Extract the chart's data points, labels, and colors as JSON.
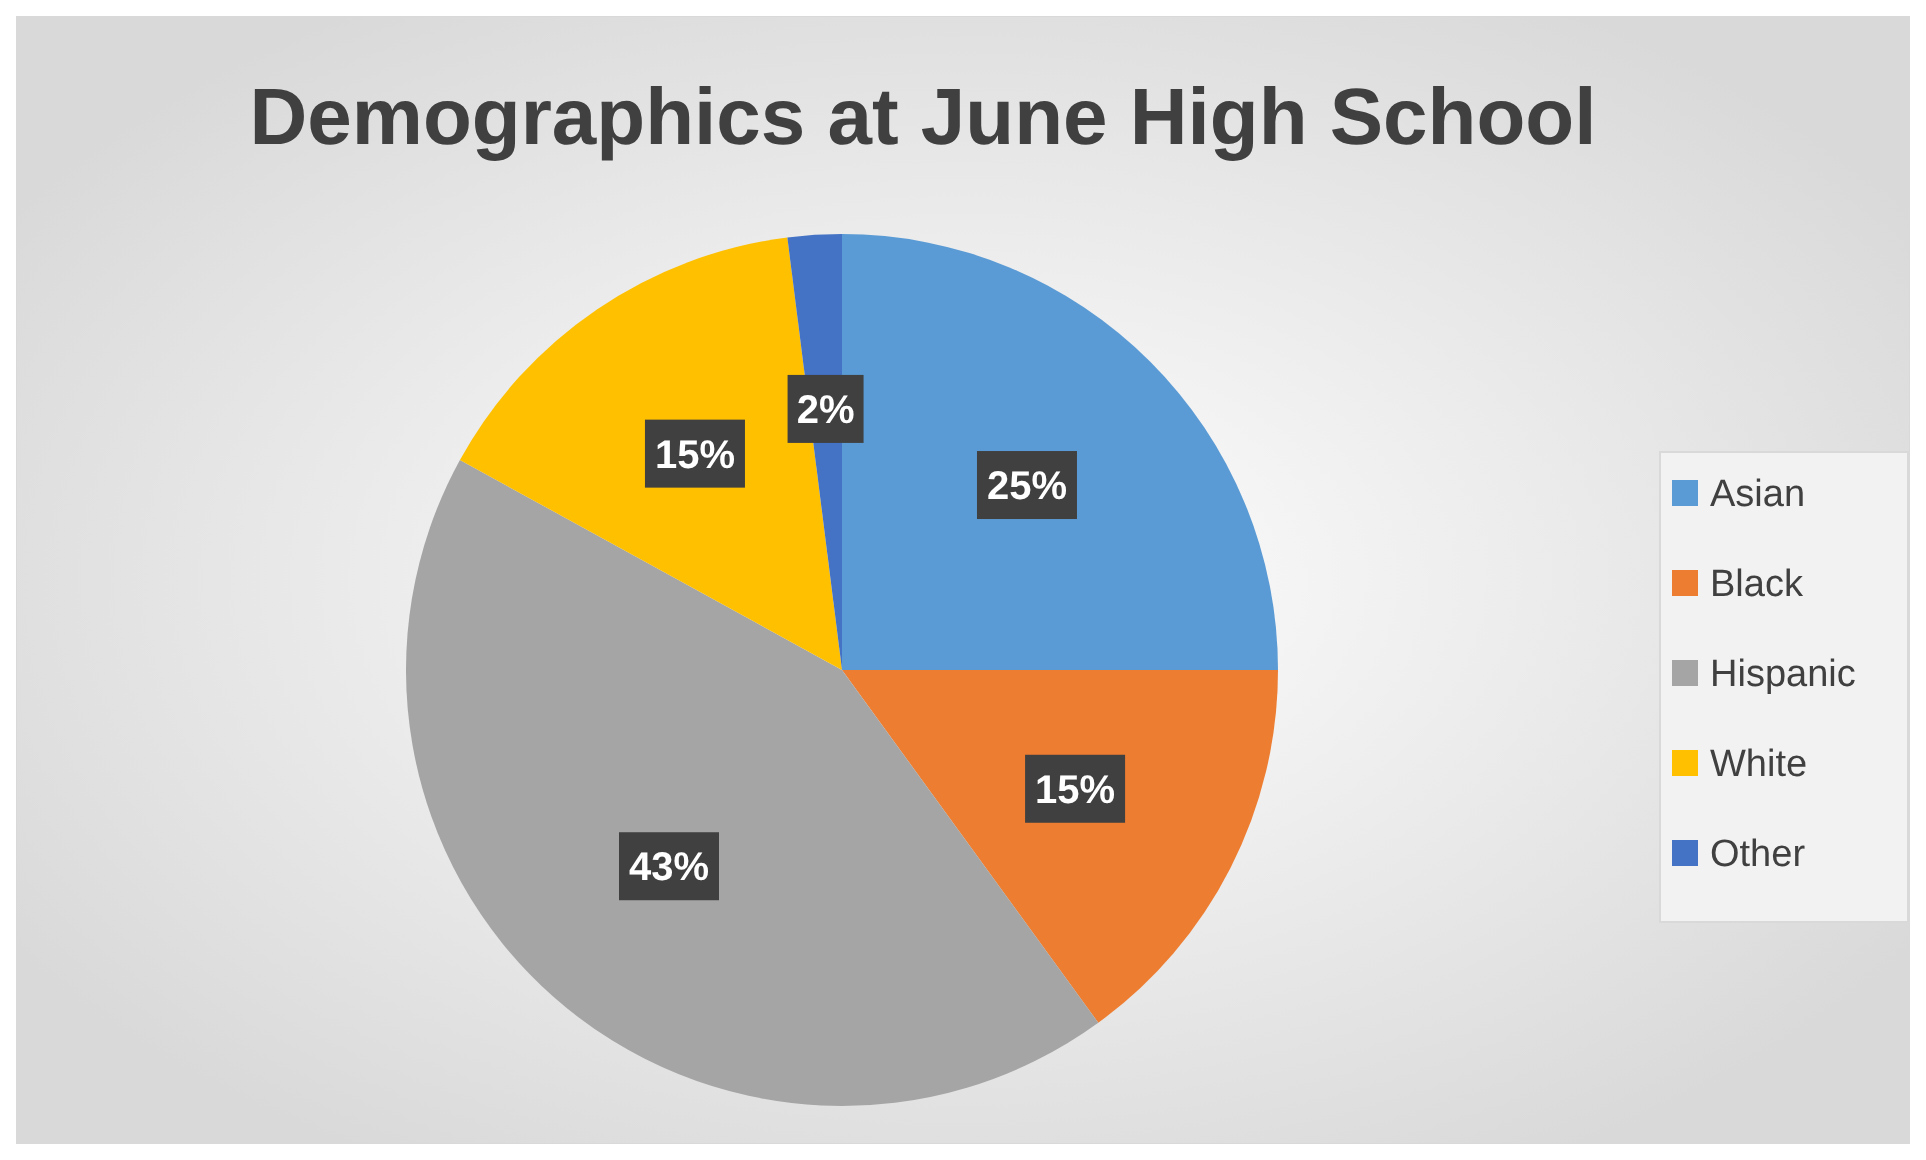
{
  "chart_data": {
    "type": "pie",
    "title": "Demographics at June High School",
    "categories": [
      "Asian",
      "Black",
      "Hispanic",
      "White",
      "Other"
    ],
    "values": [
      25,
      15,
      43,
      15,
      2
    ],
    "colors": [
      "#5b9bd5",
      "#ed7d31",
      "#a5a5a5",
      "#ffc000",
      "#4472c4"
    ],
    "value_labels": [
      "25%",
      "15%",
      "43%",
      "15%",
      "2%"
    ],
    "legend": "right"
  }
}
